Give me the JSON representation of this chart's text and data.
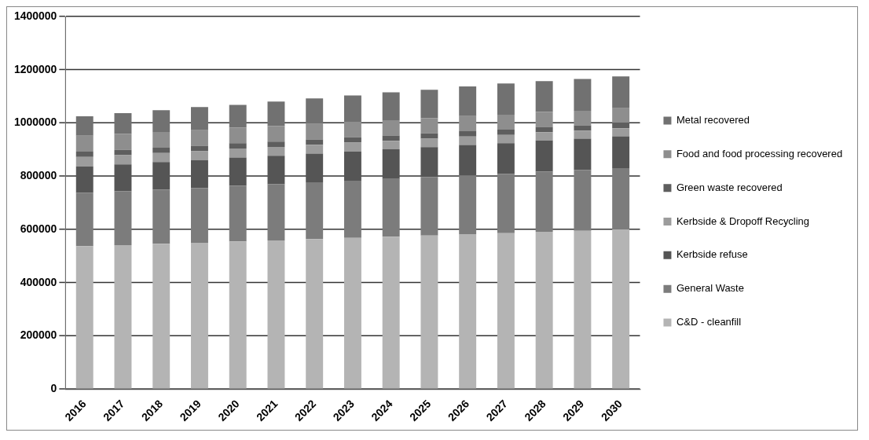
{
  "chart_data": {
    "type": "bar",
    "stacked": true,
    "categories": [
      "2016",
      "2017",
      "2018",
      "2019",
      "2020",
      "2021",
      "2022",
      "2023",
      "2024",
      "2025",
      "2026",
      "2027",
      "2028",
      "2029",
      "2030"
    ],
    "series": [
      {
        "name": "C&D - cleanfill",
        "color": "#b4b4b4",
        "values": [
          537000,
          541000,
          546000,
          550000,
          555000,
          559000,
          564000,
          568000,
          573000,
          577000,
          582000,
          586000,
          591000,
          595000,
          600000
        ]
      },
      {
        "name": "General Waste",
        "color": "#7c7c7c",
        "values": [
          200000,
          202000,
          204000,
          206000,
          209000,
          211000,
          213000,
          215000,
          217000,
          219000,
          221000,
          223000,
          226000,
          228000,
          230000
        ]
      },
      {
        "name": "Kerbside refuse",
        "color": "#555555",
        "values": [
          100000,
          101000,
          103000,
          104000,
          106000,
          107000,
          108000,
          110000,
          111000,
          113000,
          114000,
          115000,
          117000,
          118000,
          120000
        ]
      },
      {
        "name": "Kerbside & Dropoff Recycling",
        "color": "#9c9c9c",
        "values": [
          35000,
          35000,
          34000,
          34000,
          34000,
          33000,
          33000,
          33000,
          32000,
          32000,
          32000,
          31000,
          31000,
          30000,
          30000
        ]
      },
      {
        "name": "Green waste recovered",
        "color": "#5e5e5e",
        "values": [
          20000,
          20000,
          20000,
          20000,
          20000,
          20000,
          20000,
          20000,
          20000,
          20000,
          20000,
          20000,
          20000,
          20000,
          20000
        ]
      },
      {
        "name": "Food and food processing recovered",
        "color": "#8e8e8e",
        "values": [
          60000,
          60000,
          59000,
          59000,
          59000,
          58000,
          58000,
          58000,
          57000,
          57000,
          57000,
          56000,
          56000,
          55000,
          55000
        ]
      },
      {
        "name": "Metal recovered",
        "color": "#717171",
        "values": [
          73000,
          78000,
          82000,
          87000,
          85000,
          92000,
          96000,
          99000,
          105000,
          107000,
          111000,
          117000,
          116000,
          119000,
          120000
        ]
      }
    ],
    "ylim": [
      0,
      1400000
    ],
    "yticks": [
      0,
      200000,
      400000,
      600000,
      800000,
      1000000,
      1200000,
      1400000
    ],
    "grid": "y",
    "legend": "right"
  }
}
